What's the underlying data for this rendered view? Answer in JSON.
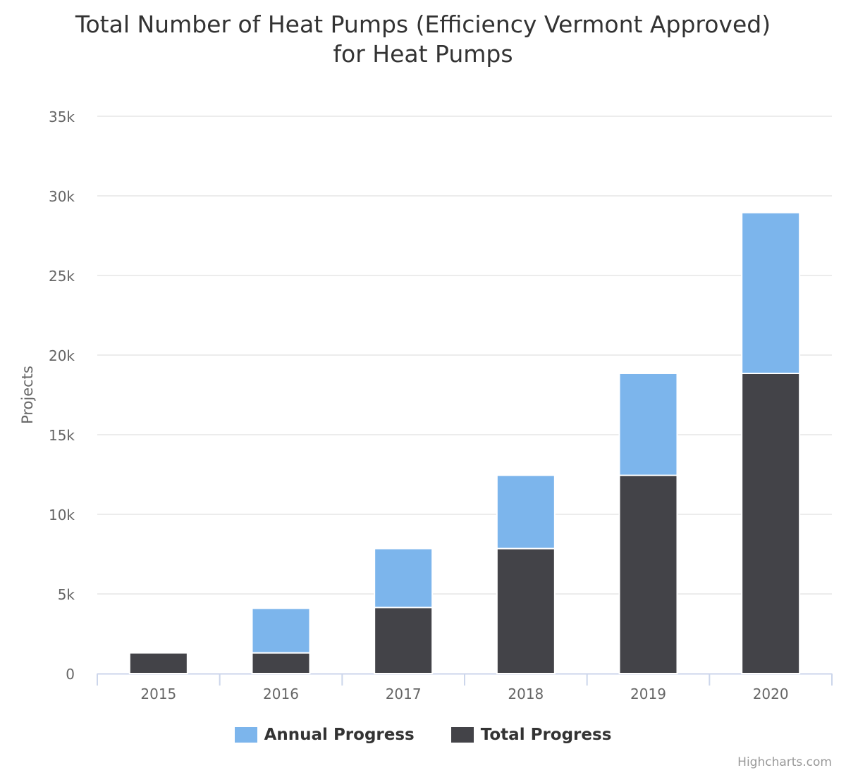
{
  "chart_data": {
    "type": "bar",
    "stacked": true,
    "title_line1": "Total Number of Heat Pumps (Efficiency Vermont Approved)",
    "title_line2": "for Heat Pumps",
    "xlabel": "",
    "ylabel": "Projects",
    "categories": [
      "2015",
      "2016",
      "2017",
      "2018",
      "2019",
      "2020"
    ],
    "series": [
      {
        "name": "Annual Progress",
        "color": "#7cb5ec",
        "values": [
          0,
          2800,
          3700,
          4600,
          6400,
          10100
        ]
      },
      {
        "name": "Total Progress",
        "color": "#434348",
        "values": [
          1300,
          1300,
          4150,
          7850,
          12450,
          18850
        ]
      }
    ],
    "ylim": [
      0,
      35000
    ],
    "yticks": [
      0,
      5000,
      10000,
      15000,
      20000,
      25000,
      30000,
      35000
    ],
    "ytick_labels": [
      "0",
      "5k",
      "10k",
      "15k",
      "20k",
      "25k",
      "30k",
      "35k"
    ],
    "grid": true,
    "legend_position": "bottom-center"
  },
  "credit": "Highcharts.com"
}
